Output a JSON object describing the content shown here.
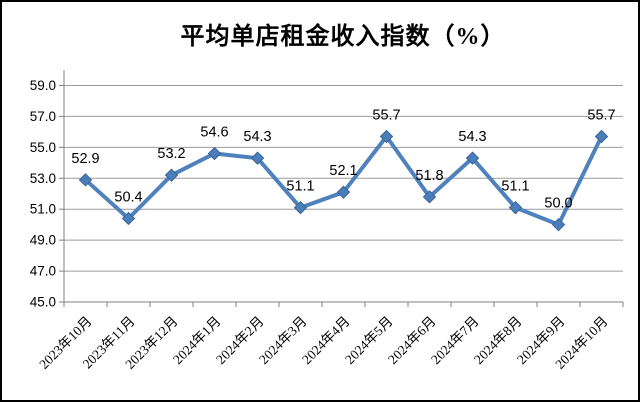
{
  "chart_data": {
    "type": "line",
    "title": "平均单店租金收入指数（%）",
    "categories": [
      "2023年10月",
      "2023年11月",
      "2023年12月",
      "2024年1月",
      "2024年2月",
      "2024年3月",
      "2024年4月",
      "2024年5月",
      "2024年6月",
      "2024年7月",
      "2024年8月",
      "2024年9月",
      "2024年10月"
    ],
    "values": [
      52.9,
      50.4,
      53.2,
      54.6,
      54.3,
      51.1,
      52.1,
      55.7,
      51.8,
      54.3,
      51.1,
      50.0,
      55.7
    ],
    "data_labels": [
      "52.9",
      "50.4",
      "53.2",
      "54.6",
      "54.3",
      "51.1",
      "52.1",
      "55.7",
      "51.8",
      "54.3",
      "51.1",
      "50.0",
      "55.7"
    ],
    "xlabel": "",
    "ylabel": "",
    "ylim": [
      45,
      60
    ],
    "yticks": [
      45,
      47,
      49,
      51,
      53,
      55,
      57,
      59
    ],
    "ytick_labels": [
      "45.0",
      "47.0",
      "49.0",
      "51.0",
      "53.0",
      "55.0",
      "57.0",
      "59.0"
    ],
    "grid": true,
    "legend": "none",
    "marker": "diamond",
    "colors": {
      "line": "#4F81BD",
      "marker_fill": "#4A7EBB",
      "marker_edge": "#3A6596",
      "gridline": "#9B9B9B",
      "axis": "#7F7F7F",
      "text": "#000000",
      "background": "#FFFFFF",
      "frame_border": "#000000"
    }
  }
}
